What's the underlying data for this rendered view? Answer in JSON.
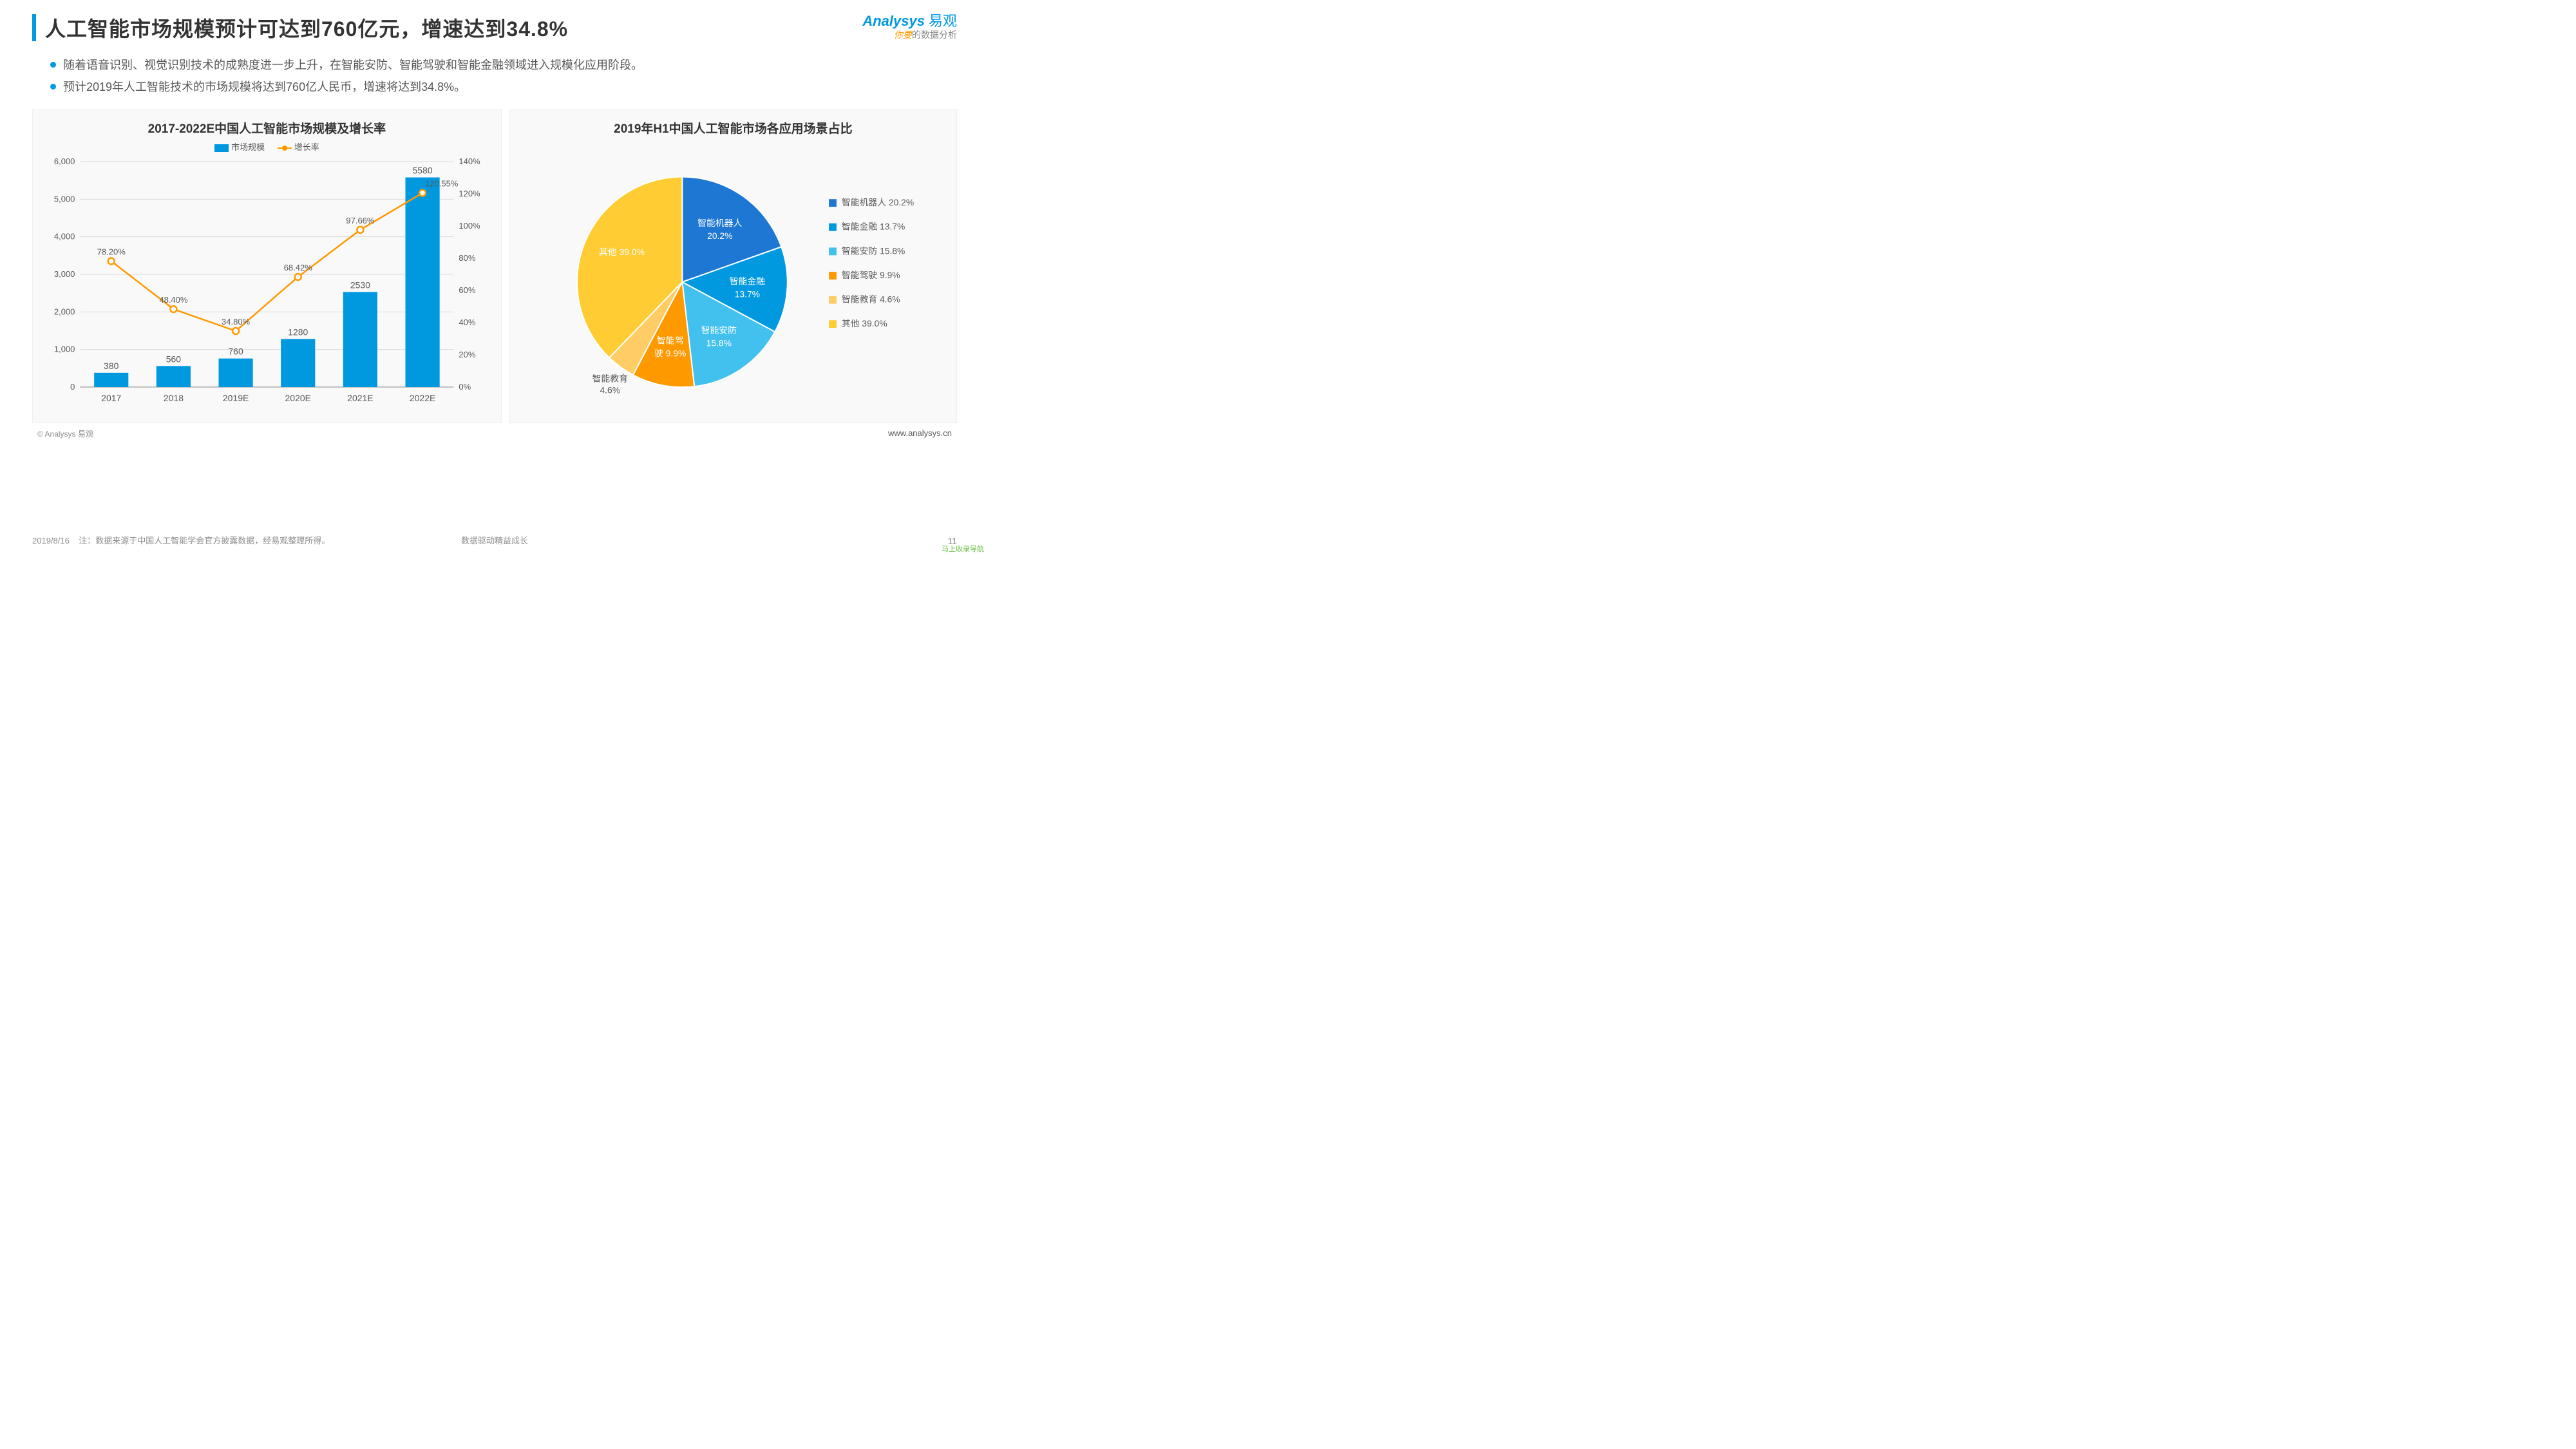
{
  "header": {
    "title": "人工智能市场规模预计可达到760亿元，增速达到34.8%",
    "logo_en": "Analysys",
    "logo_cn": "易观",
    "logo_tag_orange": "你要",
    "logo_tag_gray": "的数据分析"
  },
  "bullets": [
    "随着语音识别、视觉识别技术的成熟度进一步上升，在智能安防、智能驾驶和智能金融领域进入规模化应用阶段。",
    "预计2019年人工智能技术的市场规模将达到760亿人民币，增速将达到34.8%。"
  ],
  "bar_chart": {
    "title": "2017-2022E中国人工智能市场规模及增长率",
    "legend_bar": "市场规模",
    "legend_line": "增长率",
    "categories": [
      "2017",
      "2018",
      "2019E",
      "2020E",
      "2021E",
      "2022E"
    ],
    "bar_values": [
      380,
      560,
      760,
      1280,
      2530,
      5580
    ],
    "line_values": [
      78.2,
      48.4,
      34.8,
      68.42,
      97.66,
      120.55
    ],
    "line_labels": [
      "78.20%",
      "48.40%",
      "34.80%",
      "68.42%",
      "97.66%",
      "120.55%"
    ],
    "y1_ticks": [
      0,
      1000,
      2000,
      3000,
      4000,
      5000,
      6000
    ],
    "y1_labels": [
      "0",
      "1,000",
      "2,000",
      "3,000",
      "4,000",
      "5,000",
      "6,000"
    ],
    "y2_ticks": [
      0,
      20,
      40,
      60,
      80,
      100,
      120,
      140
    ],
    "y2_labels": [
      "0%",
      "20%",
      "40%",
      "60%",
      "80%",
      "100%",
      "120%",
      "140%"
    ],
    "bar_color": "#0099e0",
    "line_color": "#ff9900",
    "grid_color": "#d9d9d9",
    "axis_color": "#8c8c8c",
    "tick_fontsize": 13,
    "label_color": "#595959",
    "bar_width": 0.55
  },
  "pie_chart": {
    "title": "2019年H1中国人工智能市场各应用场景占比",
    "slices": [
      {
        "label": "智能机器人",
        "value": 20.2,
        "color": "#1f77d4",
        "legend": "智能机器人 20.2%",
        "inner1": "智能机器人",
        "inner2": "20.2%"
      },
      {
        "label": "智能金融",
        "value": 13.7,
        "color": "#0099e0",
        "legend": "智能金融 13.7%",
        "inner1": "智能金融",
        "inner2": "13.7%"
      },
      {
        "label": "智能安防",
        "value": 15.8,
        "color": "#42c0ee",
        "legend": "智能安防 15.8%",
        "inner1": "智能安防",
        "inner2": "15.8%"
      },
      {
        "label": "智能驾驶",
        "value": 9.9,
        "color": "#ff9900",
        "legend": "智能驾驶 9.9%",
        "inner1": "智能驾",
        "inner2": "驶 9.9%"
      },
      {
        "label": "智能教育",
        "value": 4.6,
        "color": "#ffcc66",
        "legend": "智能教育 4.6%",
        "inner1": "智能教育",
        "inner2": "4.6%",
        "outside": true
      },
      {
        "label": "其他",
        "value": 39.0,
        "color": "#ffcc33",
        "legend": "其他 39.0%",
        "inner1": "其他 39.0%",
        "inner2": ""
      }
    ],
    "label_fontsize": 14,
    "label_color": "#ffffff",
    "outside_label_color": "#595959",
    "legend_fontsize": 14,
    "legend_color": "#595959"
  },
  "source": "© Analysys 易观",
  "url": "www.analysys.cn",
  "footer": {
    "date": "2019/8/16",
    "note": "注：数据来源于中国人工智能学会官方披露数据，经易观整理所得。",
    "center": "数据驱动精益成长",
    "page": "11",
    "corner": "马上收录导航"
  }
}
